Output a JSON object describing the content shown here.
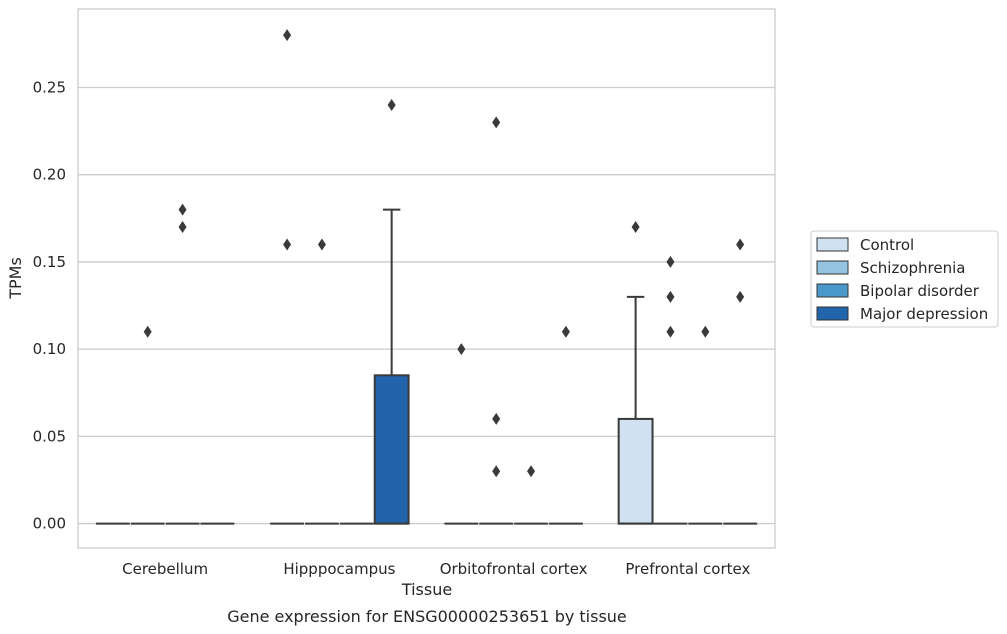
{
  "chart_data": {
    "type": "box",
    "xlabel": "Tissue",
    "ylabel": "TPMs",
    "caption": "Gene expression for ENSG00000253651 by tissue",
    "ylim": [
      -0.014,
      0.295
    ],
    "yticks": [
      "0.00",
      "0.05",
      "0.10",
      "0.15",
      "0.20",
      "0.25"
    ],
    "ytick_values": [
      0,
      0.05,
      0.1,
      0.15,
      0.2,
      0.25
    ],
    "grid": true,
    "legend_position": "right",
    "categories": [
      "Cerebellum",
      "Hipppocampus",
      "Orbitofrontal cortex",
      "Prefrontal cortex"
    ],
    "series": [
      {
        "name": "Control",
        "color": "#d0e1f2",
        "boxes": [
          {
            "q1": 0,
            "median": 0,
            "q3": 0,
            "whislo": 0,
            "whishi": 0,
            "fliers": []
          },
          {
            "q1": 0,
            "median": 0,
            "q3": 0,
            "whislo": 0,
            "whishi": 0,
            "fliers": [
              0.16,
              0.28
            ]
          },
          {
            "q1": 0,
            "median": 0,
            "q3": 0,
            "whislo": 0,
            "whishi": 0,
            "fliers": [
              0.1
            ]
          },
          {
            "q1": 0,
            "median": 0,
            "q3": 0.06,
            "whislo": 0,
            "whishi": 0.13,
            "fliers": [
              0.17
            ]
          }
        ]
      },
      {
        "name": "Schizophrenia",
        "color": "#94c4df",
        "boxes": [
          {
            "q1": 0,
            "median": 0,
            "q3": 0,
            "whislo": 0,
            "whishi": 0,
            "fliers": [
              0.11
            ]
          },
          {
            "q1": 0,
            "median": 0,
            "q3": 0,
            "whislo": 0,
            "whishi": 0,
            "fliers": [
              0.16
            ]
          },
          {
            "q1": 0,
            "median": 0,
            "q3": 0,
            "whislo": 0,
            "whishi": 0,
            "fliers": [
              0.03,
              0.06,
              0.23
            ]
          },
          {
            "q1": 0,
            "median": 0,
            "q3": 0,
            "whislo": 0,
            "whishi": 0,
            "fliers": [
              0.11,
              0.13,
              0.15
            ]
          }
        ]
      },
      {
        "name": "Bipolar disorder",
        "color": "#4a98c9",
        "boxes": [
          {
            "q1": 0,
            "median": 0,
            "q3": 0,
            "whislo": 0,
            "whishi": 0,
            "fliers": [
              0.17,
              0.18
            ]
          },
          {
            "q1": 0,
            "median": 0,
            "q3": 0,
            "whislo": 0,
            "whishi": 0,
            "fliers": []
          },
          {
            "q1": 0,
            "median": 0,
            "q3": 0,
            "whislo": 0,
            "whishi": 0,
            "fliers": [
              0.03
            ]
          },
          {
            "q1": 0,
            "median": 0,
            "q3": 0,
            "whislo": 0,
            "whishi": 0,
            "fliers": [
              0.11
            ]
          }
        ]
      },
      {
        "name": "Major depression",
        "color": "#2164ab",
        "boxes": [
          {
            "q1": 0,
            "median": 0,
            "q3": 0,
            "whislo": 0,
            "whishi": 0,
            "fliers": []
          },
          {
            "q1": 0,
            "median": 0,
            "q3": 0.085,
            "whislo": 0,
            "whishi": 0.18,
            "fliers": [
              0.24
            ]
          },
          {
            "q1": 0,
            "median": 0,
            "q3": 0,
            "whislo": 0,
            "whishi": 0,
            "fliers": [
              0.11
            ]
          },
          {
            "q1": 0,
            "median": 0,
            "q3": 0,
            "whislo": 0,
            "whishi": 0,
            "fliers": [
              0.13,
              0.16
            ]
          }
        ]
      }
    ]
  }
}
